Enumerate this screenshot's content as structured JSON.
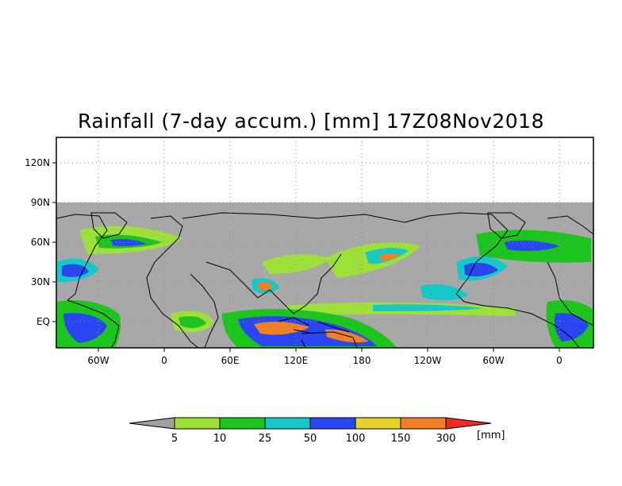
{
  "title": "Rainfall (7-day accum.) [mm] 17Z08Nov2018",
  "map": {
    "type": "heatmap",
    "variable": "rainfall 7-day accumulation",
    "y_axis_labels": [
      "120N",
      "90N",
      "60N",
      "30N",
      "EQ"
    ],
    "x_axis_labels": [
      "60W",
      "0",
      "60E",
      "120E",
      "180",
      "120W",
      "60W",
      "0"
    ],
    "grid": "dotted",
    "no_data_color": "#a8a8a8",
    "land_outline_color": "#000000"
  },
  "colorbar": {
    "unit": "[mm]",
    "thresholds": [
      "5",
      "10",
      "25",
      "50",
      "100",
      "150",
      "300"
    ],
    "colors": [
      "#a0a0a0",
      "#9ee03a",
      "#1ec41e",
      "#16c8c8",
      "#2a46f0",
      "#e6d22a",
      "#f08028",
      "#f02828"
    ]
  }
}
